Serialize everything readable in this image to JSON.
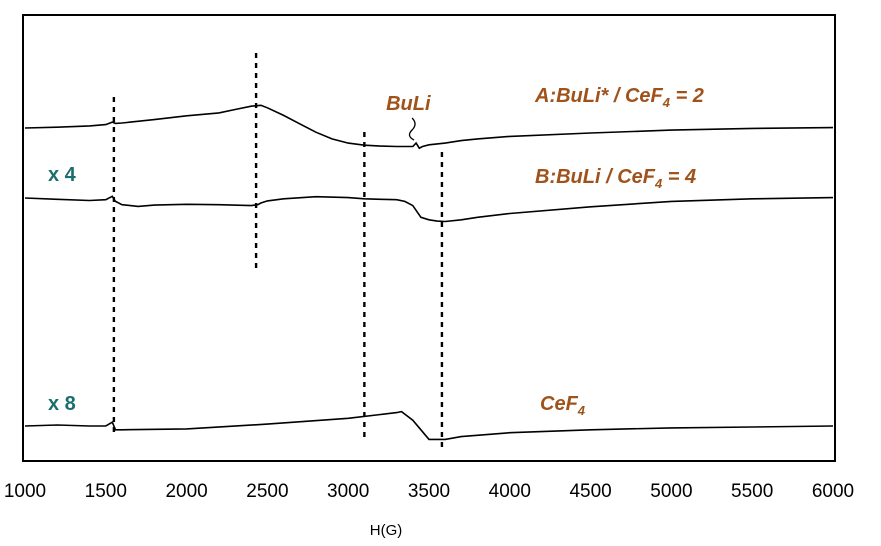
{
  "chart_data": {
    "type": "line",
    "xlabel": "H(G)",
    "ylabel": "",
    "xlim": [
      1000,
      6000
    ],
    "x_ticks": [
      "1000",
      "1500",
      "2000",
      "2500",
      "3000",
      "3500",
      "4000",
      "4500",
      "5000",
      "5500",
      "6000"
    ],
    "grid": false,
    "series": [
      {
        "name": "A:BuLi* / CeF4 = 2",
        "label_main": "A:BuLi* / CeF",
        "label_sub": "4",
        "label_tail": " = 2",
        "multiplier": "",
        "x": [
          1000,
          1200,
          1400,
          1500,
          1540,
          1560,
          1600,
          1800,
          2000,
          2200,
          2300,
          2400,
          2460,
          2500,
          2600,
          2700,
          2800,
          2900,
          3000,
          3100,
          3200,
          3300,
          3400,
          3420,
          3440,
          3460,
          3500,
          3600,
          3700,
          3800,
          4000,
          4500,
          5000,
          5500,
          6000
        ],
        "values": [
          0.82,
          0.83,
          0.845,
          0.86,
          0.89,
          0.875,
          0.88,
          0.92,
          0.965,
          1.0,
          1.04,
          1.08,
          1.09,
          1.06,
          0.97,
          0.87,
          0.77,
          0.69,
          0.64,
          0.615,
          0.605,
          0.6,
          0.6,
          0.64,
          0.58,
          0.6,
          0.62,
          0.64,
          0.67,
          0.69,
          0.72,
          0.76,
          0.795,
          0.815,
          0.825
        ]
      },
      {
        "name": "B:BuLi / CeF4 = 4",
        "label_main": "B:BuLi / CeF",
        "label_sub": "4",
        "label_tail": " = 4",
        "multiplier": "x 4",
        "x": [
          1000,
          1200,
          1400,
          1500,
          1540,
          1560,
          1600,
          1700,
          1800,
          2000,
          2200,
          2400,
          2440,
          2460,
          2500,
          2600,
          2800,
          3000,
          3100,
          3200,
          3300,
          3350,
          3400,
          3450,
          3500,
          3550,
          3600,
          3700,
          3800,
          4000,
          4500,
          5000,
          5500,
          6000
        ],
        "values": [
          0.56,
          0.545,
          0.53,
          0.54,
          0.58,
          0.52,
          0.48,
          0.46,
          0.475,
          0.485,
          0.48,
          0.47,
          0.48,
          0.5,
          0.525,
          0.55,
          0.575,
          0.565,
          0.55,
          0.545,
          0.54,
          0.52,
          0.47,
          0.33,
          0.3,
          0.285,
          0.28,
          0.3,
          0.33,
          0.375,
          0.455,
          0.52,
          0.55,
          0.565
        ]
      },
      {
        "name": "CeF4",
        "label_main": "CeF",
        "label_sub": "4",
        "label_tail": "",
        "multiplier": "x 8",
        "x": [
          1000,
          1200,
          1400,
          1500,
          1540,
          1560,
          1600,
          2000,
          2500,
          3000,
          3200,
          3300,
          3330,
          3400,
          3450,
          3500,
          3600,
          3700,
          4000,
          4500,
          5000,
          5500,
          6000
        ],
        "values": [
          -0.41,
          -0.405,
          -0.41,
          -0.41,
          -0.39,
          -0.43,
          -0.43,
          -0.425,
          -0.4,
          -0.37,
          -0.35,
          -0.34,
          -0.335,
          -0.38,
          -0.43,
          -0.48,
          -0.48,
          -0.465,
          -0.445,
          -0.43,
          -0.42,
          -0.415,
          -0.41
        ]
      }
    ],
    "markers_x": [
      1550,
      2430,
      3100,
      3580
    ],
    "annotations": [
      {
        "text": "BuLi",
        "x": 3420
      }
    ]
  }
}
